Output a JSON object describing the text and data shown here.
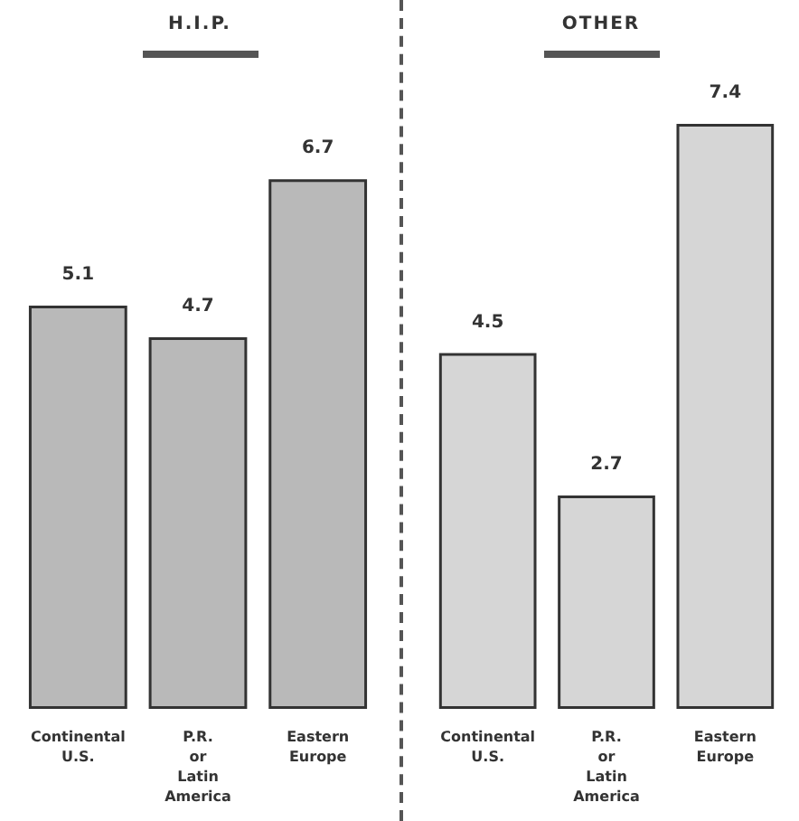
{
  "chart_data": [
    {
      "type": "bar",
      "title": "H.I.P.",
      "categories": [
        "Continental U.S.",
        "P.R. or Latin America",
        "Eastern Europe"
      ],
      "values": [
        5.1,
        4.7,
        6.7
      ],
      "color": "#b9b9b9",
      "data_labels": true
    },
    {
      "type": "bar",
      "title": "OTHER",
      "categories": [
        "Continental U.S.",
        "P.R. or Latin America",
        "Eastern Europe"
      ],
      "values": [
        4.5,
        2.7,
        7.4
      ],
      "color": "#d6d6d6",
      "data_labels": true
    }
  ]
}
